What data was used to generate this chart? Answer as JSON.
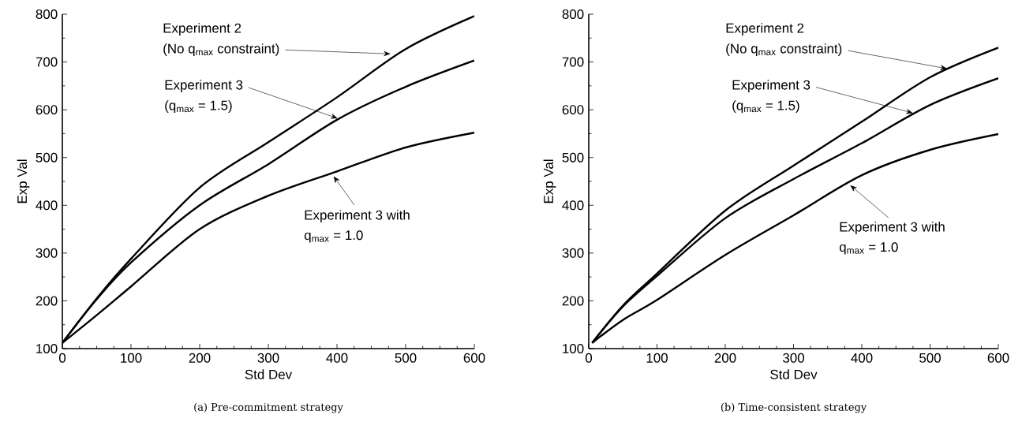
{
  "chart_data": [
    {
      "type": "line",
      "title": "(a) Pre-commitment strategy",
      "xlabel": "Std Dev",
      "ylabel": "Exp Val",
      "xlim": [
        0,
        600
      ],
      "ylim": [
        100,
        800
      ],
      "xticks": [
        0,
        100,
        200,
        300,
        400,
        500,
        600
      ],
      "yticks": [
        100,
        200,
        300,
        400,
        500,
        600,
        700,
        800
      ],
      "grid": false,
      "marker": "none",
      "line_style": "solid",
      "series": [
        {
          "color": "#000000",
          "x": [
            0,
            50,
            100,
            200,
            300,
            400,
            500,
            600
          ],
          "values": [
            112,
            205,
            288,
            437,
            532,
            626,
            727,
            796
          ]
        },
        {
          "color": "#000000",
          "x": [
            0,
            50,
            100,
            200,
            300,
            400,
            500,
            600
          ],
          "values": [
            112,
            203,
            280,
            400,
            486,
            579,
            648,
            703
          ]
        },
        {
          "color": "#000000",
          "x": [
            0,
            50,
            100,
            200,
            300,
            400,
            500,
            600
          ],
          "values": [
            112,
            170,
            230,
            350,
            420,
            471,
            521,
            552
          ]
        }
      ],
      "annotations": [
        "Experiment 2",
        {
          "text": "(No q$_{max}$ constraint)",
          "x": 478,
          "y": 717
        },
        {
          "text": "Experiment 3",
          "x": 401,
          "y": 582
        },
        "(q$_{max}$ = 1.5)",
        {
          "text": "Experiment 3 with",
          "x": 395,
          "y": 461
        },
        "q$_{max}$ = 1.0"
      ]
    },
    {
      "type": "line",
      "title": "(b) Time-consistent strategy",
      "xlabel": "Std Dev",
      "ylabel": "Exp Val",
      "xlim": [
        0,
        600
      ],
      "ylim": [
        100,
        800
      ],
      "xticks": [
        0,
        100,
        200,
        300,
        400,
        500,
        600
      ],
      "yticks": [
        100,
        200,
        300,
        400,
        500,
        600,
        700,
        800
      ],
      "grid": false,
      "marker": "none",
      "line_style": "solid",
      "series": [
        {
          "color": "#000000",
          "x": [
            5,
            50,
            100,
            200,
            300,
            400,
            500,
            600
          ],
          "values": [
            112,
            190,
            257,
            389,
            483,
            575,
            668,
            730
          ]
        },
        {
          "color": "#000000",
          "x": [
            5,
            50,
            100,
            200,
            300,
            400,
            500,
            600
          ],
          "values": [
            112,
            188,
            252,
            373,
            455,
            530,
            610,
            666
          ]
        },
        {
          "color": "#000000",
          "x": [
            5,
            50,
            100,
            200,
            300,
            400,
            500,
            600
          ],
          "values": [
            112,
            160,
            202,
            296,
            379,
            463,
            516,
            549
          ]
        }
      ],
      "annotations": [
        "Experiment 2",
        {
          "text": "(No q$_{max}$ constraint)",
          "x": 525,
          "y": 686
        },
        {
          "text": "Experiment 3",
          "x": 475,
          "y": 593
        },
        "(q$_{max}$ = 1.5)",
        {
          "text": "Experiment 3 with",
          "x": 383,
          "y": 442
        },
        "q$_{max}$ = 1.0"
      ]
    }
  ]
}
